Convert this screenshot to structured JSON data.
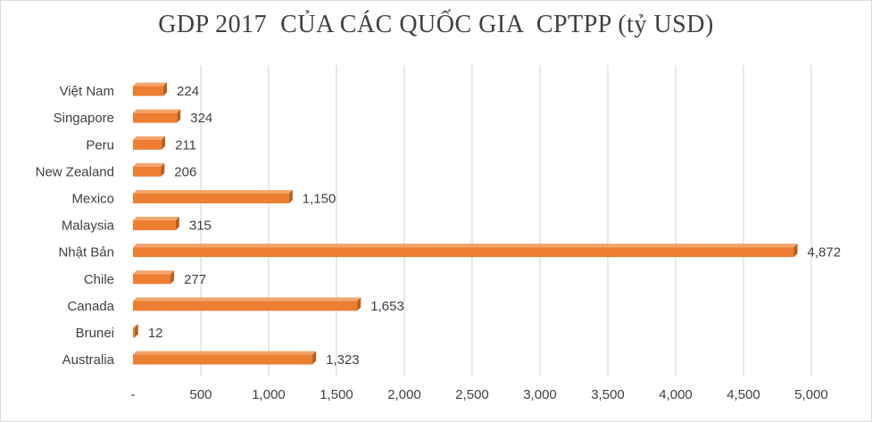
{
  "chart_data": {
    "type": "bar",
    "orientation": "horizontal",
    "title": "GDP 2017  CỦA CÁC QUỐC GIA  CPTPP (tỷ USD)",
    "xlabel": "",
    "ylabel": "",
    "categories": [
      "Việt Nam",
      "Singapore",
      "Peru",
      "New Zealand",
      "Mexico",
      "Malaysia",
      "Nhật Bản",
      "Chile",
      "Canada",
      "Brunei",
      "Australia"
    ],
    "values": [
      224,
      324,
      211,
      206,
      1150,
      315,
      4872,
      277,
      1653,
      12,
      1323
    ],
    "data_labels": [
      "224",
      "324",
      "211",
      "206",
      "1,150",
      "315",
      "4,872",
      "277",
      "1,653",
      "12",
      "1,323"
    ],
    "xlim": [
      0,
      5000
    ],
    "x_ticks": [
      0,
      500,
      1000,
      1500,
      2000,
      2500,
      3000,
      3500,
      4000,
      4500,
      5000
    ],
    "x_tick_labels": [
      "-",
      "500",
      "1,000",
      "1,500",
      "2,000",
      "2,500",
      "3,000",
      "3,500",
      "4,000",
      "4,500",
      "5,000"
    ],
    "grid": true,
    "bar_color": "#ED7D31",
    "bar_edge_color": "#B85E1E"
  }
}
